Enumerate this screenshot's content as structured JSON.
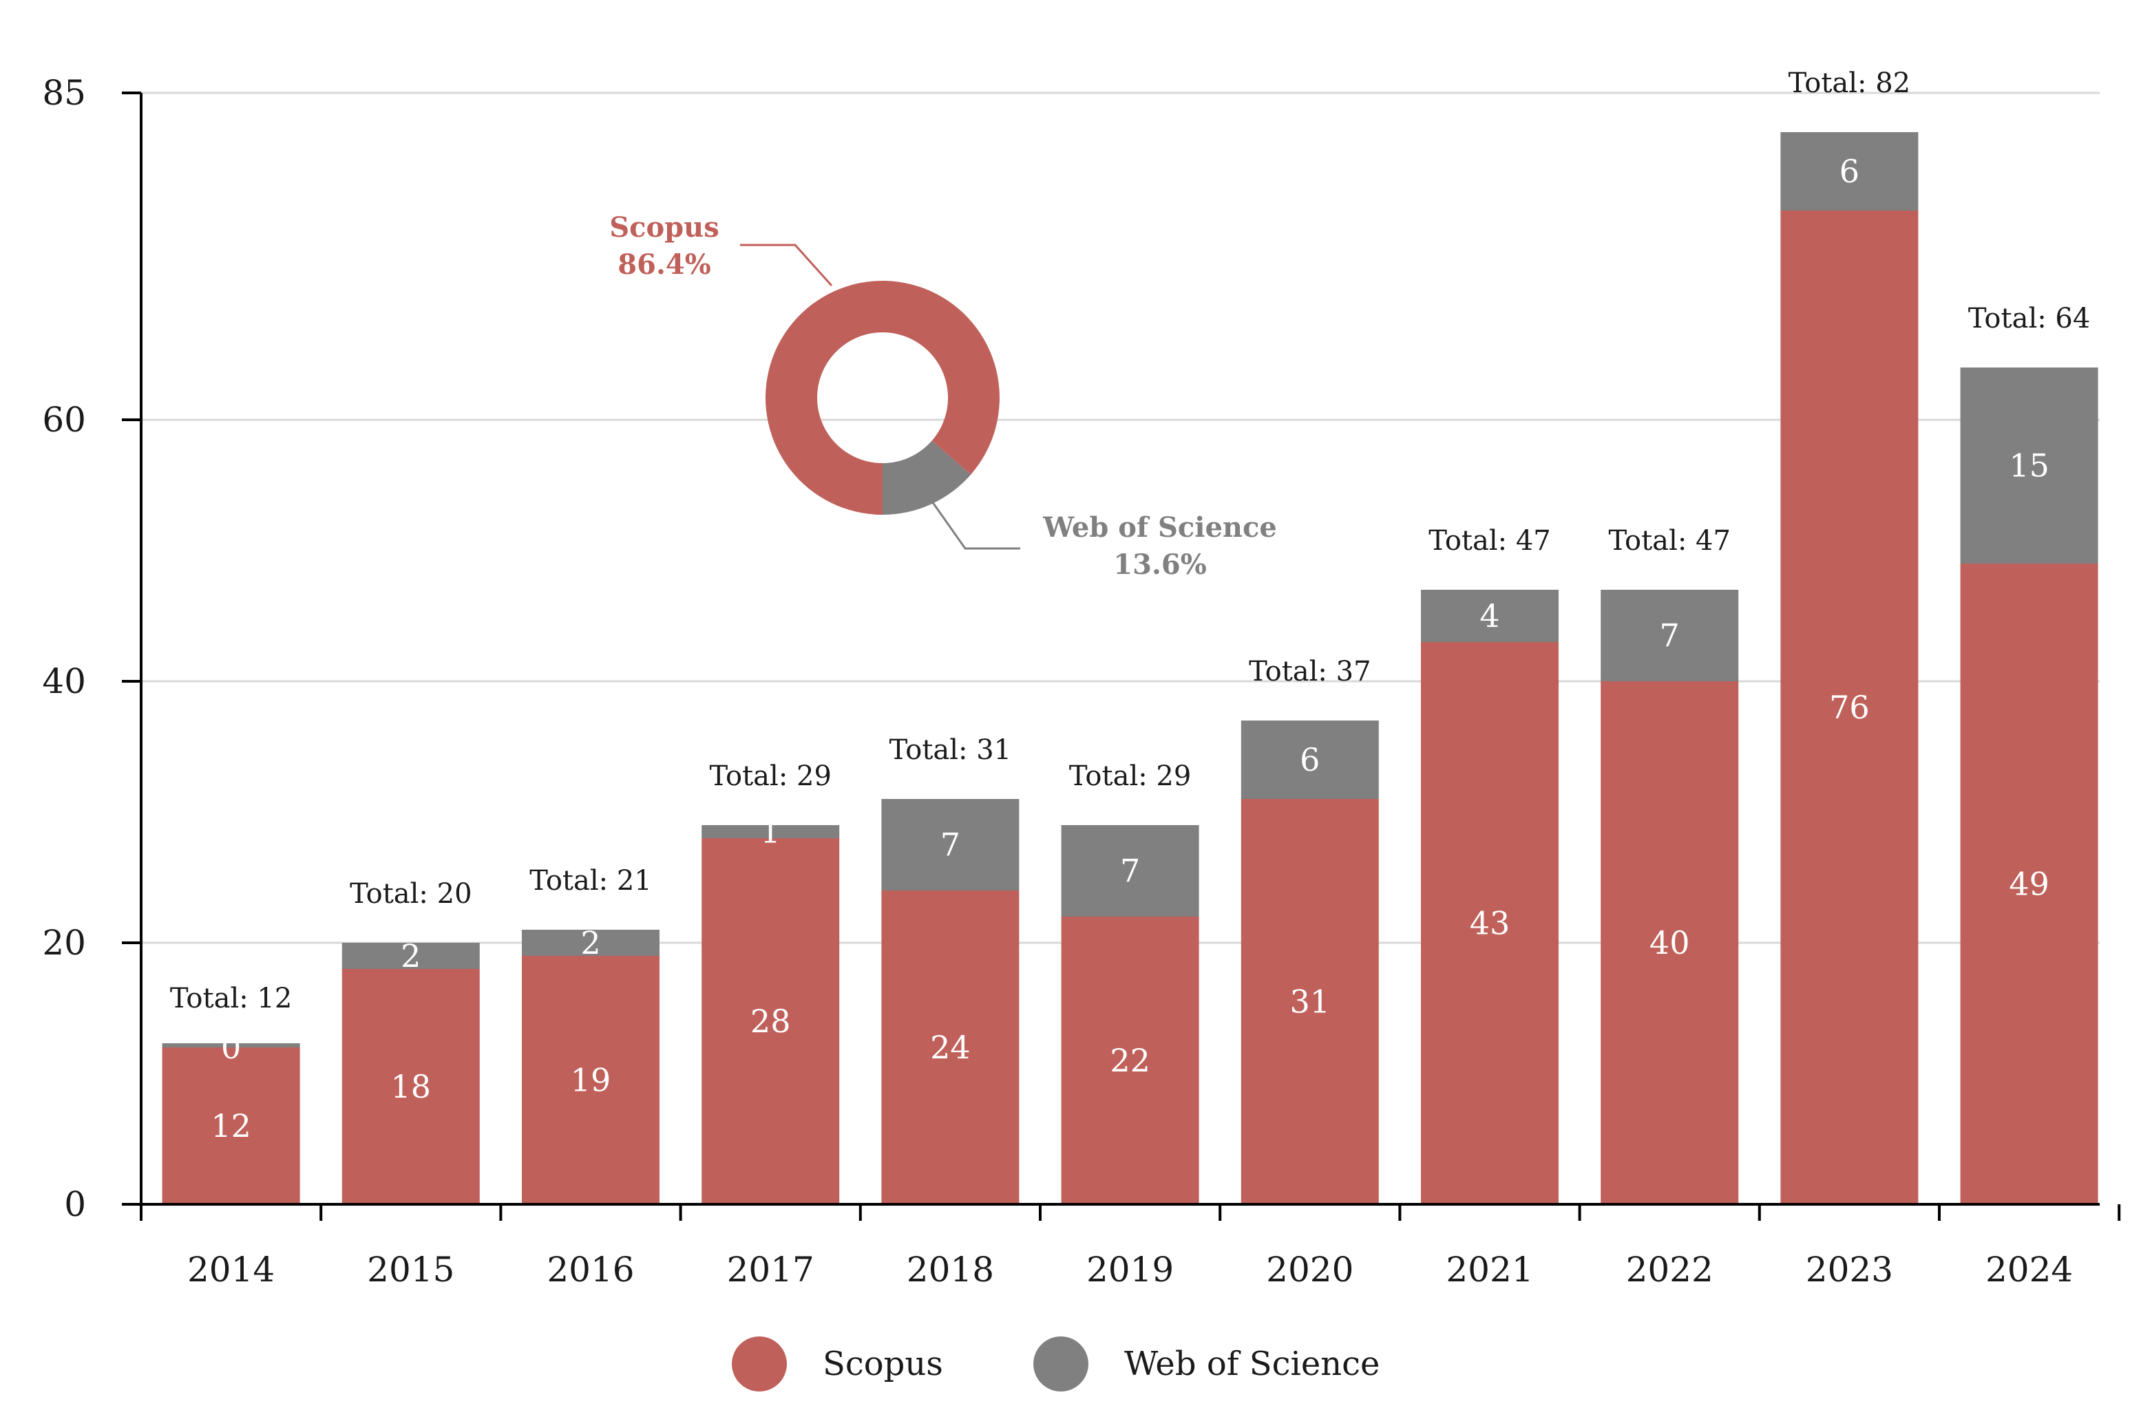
{
  "chart_data": {
    "type": "bar",
    "stacked": true,
    "categories": [
      "2014",
      "2015",
      "2016",
      "2017",
      "2018",
      "2019",
      "2020",
      "2021",
      "2022",
      "2023",
      "2024"
    ],
    "series": [
      {
        "name": "Scopus",
        "color": "#c0605a",
        "values": [
          12,
          18,
          19,
          28,
          24,
          22,
          31,
          43,
          40,
          76,
          49
        ]
      },
      {
        "name": "Web of Science",
        "color": "#808080",
        "values": [
          0,
          2,
          2,
          1,
          7,
          7,
          6,
          4,
          7,
          6,
          15
        ]
      }
    ],
    "totals": [
      "Total: 12",
      "Total: 20",
      "Total: 21",
      "Total: 29",
      "Total: 31",
      "Total: 29",
      "Total: 37",
      "Total: 47",
      "Total: 47",
      "Total: 82",
      "Total: 64"
    ],
    "total_values": [
      12,
      20,
      21,
      29,
      31,
      29,
      37,
      47,
      47,
      82,
      64
    ],
    "yticks": [
      0,
      20,
      40,
      60,
      85
    ],
    "ylim": [
      0,
      85
    ],
    "grid": true,
    "legend_position": "bottom-center",
    "inset": {
      "type": "pie",
      "donut": true,
      "slices": [
        {
          "name": "Scopus",
          "label": "Scopus",
          "percent_label": "86.4%",
          "value": 86.4,
          "color": "#c0605a"
        },
        {
          "name": "Web of Science",
          "label": "Web of Science",
          "percent_label": "13.6%",
          "value": 13.6,
          "color": "#808080"
        }
      ]
    }
  }
}
